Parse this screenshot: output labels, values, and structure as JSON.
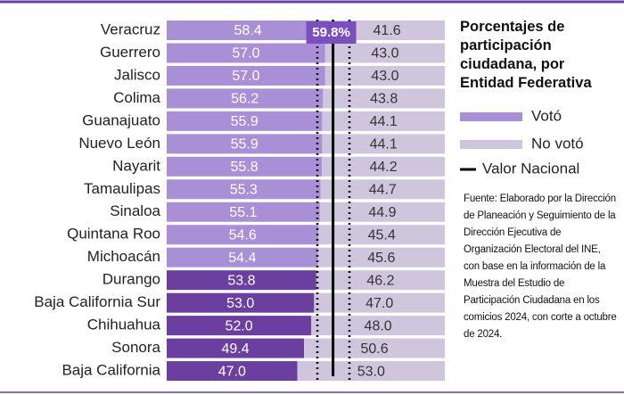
{
  "chart_data": {
    "type": "stacked-bar-horizontal",
    "title": "Porcentajes de participación ciudadana, por Entidad Federativa",
    "source": "Fuente: Elaborado por la Dirección de Planeación y Seguimiento de la Dirección Ejecutiva de Organización Electoral del INE, con base en la información de la Muestra del Estudio de Participación Ciudadana en los comicios 2024, con corte a octubre de 2024.",
    "categories": [
      "Veracruz",
      "Guerrero",
      "Jalisco",
      "Colima",
      "Guanajuato",
      "Nuevo León",
      "Nayarit",
      "Tamaulipas",
      "Sinaloa",
      "Quintana Roo",
      "Michoacán",
      "Durango",
      "Baja California Sur",
      "Chihuahua",
      "Sonora",
      "Baja California"
    ],
    "series": [
      {
        "name": "Votó",
        "color": "#a98fd6",
        "colors": [
          "#a98fd6",
          "#a98fd6",
          "#a98fd6",
          "#a98fd6",
          "#a98fd6",
          "#a98fd6",
          "#a98fd6",
          "#a98fd6",
          "#a98fd6",
          "#a98fd6",
          "#a98fd6",
          "#6b3fa0",
          "#6b3fa0",
          "#6b3fa0",
          "#6b3fa0",
          "#6b3fa0"
        ],
        "values": [
          58.4,
          57.0,
          57.0,
          56.2,
          55.9,
          55.9,
          55.8,
          55.3,
          55.1,
          54.6,
          54.4,
          53.8,
          53.0,
          52.0,
          49.4,
          47.0
        ],
        "value_labels": [
          "58.4",
          "57.0",
          "57.0",
          "56.2",
          "55.9",
          "55.9",
          "55.8",
          "55.3",
          "55.1",
          "54.6",
          "54.4",
          "53.8",
          "53.0",
          "52.0",
          "49.4",
          "47.0"
        ]
      },
      {
        "name": "No votó",
        "color": "#cfc6de",
        "values": [
          41.6,
          43.0,
          43.0,
          43.8,
          44.1,
          44.1,
          44.2,
          44.7,
          44.9,
          45.4,
          45.6,
          46.2,
          47.0,
          48.0,
          50.6,
          53.0
        ],
        "value_labels": [
          "41.6",
          "43.0",
          "43.0",
          "43.8",
          "44.1",
          "44.1",
          "44.2",
          "44.7",
          "44.9",
          "45.4",
          "45.6",
          "46.2",
          "47.0",
          "48.0",
          "50.6",
          "53.0"
        ]
      }
    ],
    "reference": {
      "name": "Valor Nacional",
      "value": 59.8,
      "label": "59.8%",
      "color": "#000000",
      "label_color": "#7b4fc0"
    }
  }
}
